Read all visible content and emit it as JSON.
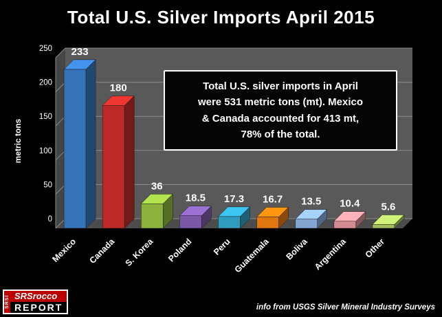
{
  "title": "Total U.S. Silver Imports April 2015",
  "annotation": {
    "text": "Total U.S. silver imports in April\nwere 531 metric tons (mt).  Mexico\n& Canada accounted for 413 mt,\n78% of the total."
  },
  "footer": {
    "source_note": "info from USGS Silver Mineral Industry Surveys"
  },
  "logo": {
    "side": "SRSI",
    "line1": "SRSrocco",
    "line2": "REPORT"
  },
  "chart_data": {
    "type": "bar",
    "title": "Total U.S. Silver Imports April 2015",
    "xlabel": "",
    "ylabel": "metric tons",
    "ylim": [
      0,
      250
    ],
    "yticks": [
      0,
      50,
      100,
      150,
      200,
      250
    ],
    "grid": true,
    "legend": "none",
    "style": "3d-bars-dark",
    "background_color": "#000000",
    "wall_color": "#595959",
    "gridline_color": "#8c8c8c",
    "categories": [
      "Mexico",
      "Canada",
      "S. Korea",
      "Poland",
      "Peru",
      "Guatemala",
      "Boliva",
      "Argentina",
      "Other"
    ],
    "values": [
      233,
      180,
      36,
      18.5,
      17.3,
      16.7,
      13.5,
      10.4,
      5.6
    ],
    "value_labels": [
      "233",
      "180",
      "36",
      "18.5",
      "17.3",
      "16.7",
      "13.5",
      "10.4",
      "5.6"
    ],
    "bar_colors": [
      "#3573b9",
      "#bb2a26",
      "#8cb13c",
      "#7a58a5",
      "#2f9bbd",
      "#e0760f",
      "#82a5d2",
      "#d38b92",
      "#a3bd5e"
    ]
  }
}
